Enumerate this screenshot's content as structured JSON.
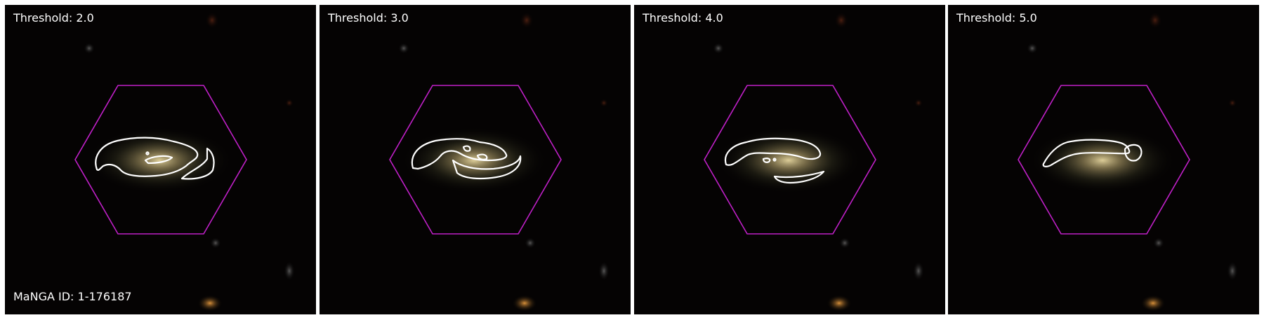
{
  "panels": [
    {
      "threshold_label": "Threshold: 2.0"
    },
    {
      "threshold_label": "Threshold: 3.0"
    },
    {
      "threshold_label": "Threshold: 4.0"
    },
    {
      "threshold_label": "Threshold: 5.0"
    }
  ],
  "footer": {
    "manga_id_label": "MaNGA ID: 1-176187"
  },
  "colors": {
    "hexagon": "#c020c8",
    "contour": "#ffffff",
    "background": "#050303",
    "separator": "#ffffff"
  }
}
